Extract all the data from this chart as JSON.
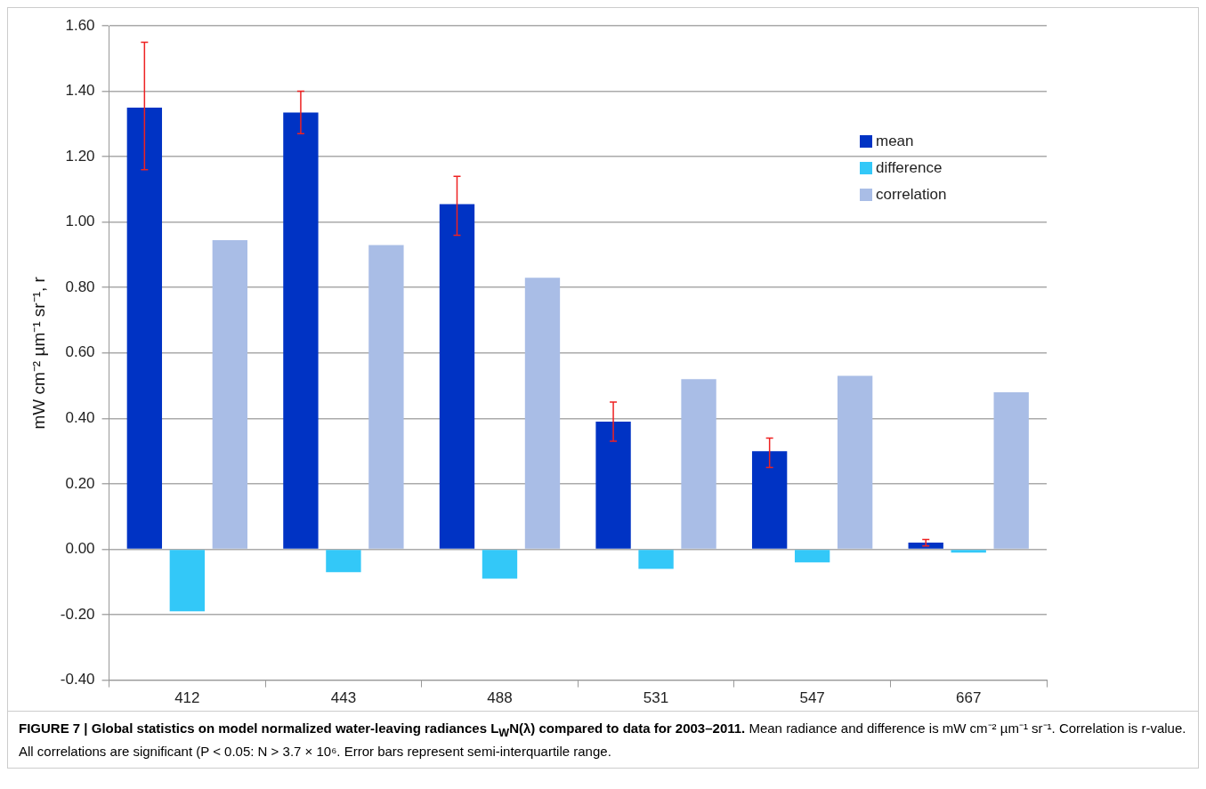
{
  "chart_data": {
    "type": "bar",
    "title": "FIGURE 7 | Global statistics on model normalized water-leaving radiances L$_{W}$N(λ) compared to data for 2003–2011.",
    "annotations": [
      "Mean radiance and difference is mW cm⁻² µm⁻¹ sr⁻¹. Correlation is r-value. All correlations are significant (P < 0.05: N > 3.7 × 10⁶. Error bars represent semi-interquartile range."
    ],
    "ylabel": "mW cm⁻² µm⁻¹ sr⁻¹, r",
    "categories": [
      "412",
      "443",
      "488",
      "531",
      "547",
      "667"
    ],
    "series": [
      {
        "name": "mean",
        "color": "#0033c4",
        "values": [
          1.35,
          1.335,
          1.055,
          0.39,
          0.3,
          0.02
        ],
        "errors": [
          [
            1.16,
            1.55
          ],
          [
            1.27,
            1.4
          ],
          [
            0.96,
            1.14
          ],
          [
            0.33,
            0.45
          ],
          [
            0.25,
            0.34
          ],
          [
            0.01,
            0.03
          ]
        ]
      },
      {
        "name": "difference",
        "color": "#33c8f8",
        "values": [
          -0.19,
          -0.07,
          -0.09,
          -0.06,
          -0.04,
          -0.01
        ]
      },
      {
        "name": "correlation",
        "color": "#a9bde6",
        "values": [
          0.945,
          0.93,
          0.83,
          0.52,
          0.53,
          0.48
        ]
      }
    ],
    "ylim": [
      -0.4,
      1.6
    ],
    "yticks": [
      {
        "value": -0.4,
        "label": "-0.40"
      },
      {
        "value": -0.2,
        "label": "-0.20"
      },
      {
        "value": 0,
        "label": "0.00"
      },
      {
        "value": 0.2,
        "label": "0.20"
      },
      {
        "value": 0.4,
        "label": "0.40"
      },
      {
        "value": 0.6,
        "label": "0.60"
      },
      {
        "value": 0.8,
        "label": "0.80"
      },
      {
        "value": 1,
        "label": "1.00"
      },
      {
        "value": 1.2,
        "label": "1.20"
      },
      {
        "value": 1.4,
        "label": "1.40"
      },
      {
        "value": 1.6,
        "label": "1.60"
      }
    ],
    "grid": "y",
    "legend": "top right"
  }
}
